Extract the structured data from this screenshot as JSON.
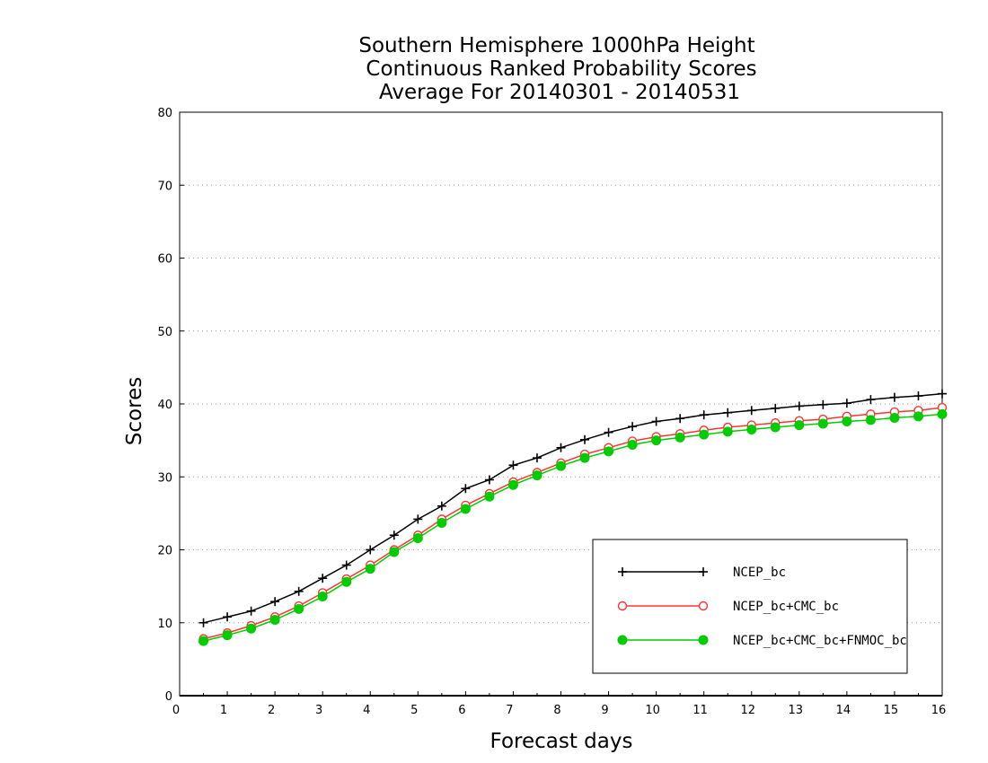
{
  "chart_data": {
    "type": "line",
    "title_lines": [
      "Southern Hemisphere 1000hPa Height",
      "Continuous Ranked Probability Scores",
      "Average For 20140301 - 20140531"
    ],
    "xlabel": "Forecast days",
    "ylabel": "Scores",
    "xlim": [
      0,
      16
    ],
    "ylim": [
      0,
      80
    ],
    "xticks": [
      0,
      1,
      2,
      3,
      4,
      5,
      6,
      7,
      8,
      9,
      10,
      11,
      12,
      13,
      14,
      15,
      16
    ],
    "yticks": [
      0,
      10,
      20,
      30,
      40,
      50,
      60,
      70,
      80
    ],
    "grid": "horizontal-dotted",
    "legend_position": "lower-right",
    "x": [
      0.5,
      1,
      1.5,
      2,
      2.5,
      3,
      3.5,
      4,
      4.5,
      5,
      5.5,
      6,
      6.5,
      7,
      7.5,
      8,
      8.5,
      9,
      9.5,
      10,
      10.5,
      11,
      11.5,
      12,
      12.5,
      13,
      13.5,
      14,
      14.5,
      15,
      15.5,
      16
    ],
    "series": [
      {
        "name": "NCEP_bc",
        "color": "#000000",
        "marker": "plus",
        "values": [
          10.0,
          10.8,
          11.6,
          12.9,
          14.3,
          16.1,
          17.9,
          20.0,
          22.0,
          24.2,
          26.0,
          28.4,
          29.6,
          31.6,
          32.6,
          34.0,
          35.1,
          36.1,
          36.9,
          37.6,
          38.0,
          38.5,
          38.8,
          39.1,
          39.4,
          39.7,
          39.9,
          40.1,
          40.6,
          40.9,
          41.1,
          41.4
        ]
      },
      {
        "name": "NCEP_bc+CMC_bc",
        "color": "#ff3333",
        "marker": "open-circle",
        "values": [
          7.8,
          8.6,
          9.6,
          10.8,
          12.3,
          14.1,
          16.0,
          17.9,
          20.0,
          22.0,
          24.2,
          26.1,
          27.7,
          29.3,
          30.6,
          31.9,
          33.1,
          34.0,
          34.9,
          35.5,
          35.9,
          36.4,
          36.8,
          37.1,
          37.4,
          37.7,
          37.9,
          38.3,
          38.6,
          38.9,
          39.1,
          39.5
        ]
      },
      {
        "name": "NCEP_bc+CMC_bc+FNMOC_bc",
        "color": "#00cc00",
        "marker": "filled-circle",
        "values": [
          7.5,
          8.3,
          9.2,
          10.4,
          11.9,
          13.6,
          15.6,
          17.4,
          19.7,
          21.6,
          23.7,
          25.6,
          27.3,
          28.9,
          30.2,
          31.5,
          32.6,
          33.5,
          34.4,
          35.0,
          35.4,
          35.8,
          36.2,
          36.5,
          36.8,
          37.1,
          37.3,
          37.6,
          37.8,
          38.1,
          38.3,
          38.6
        ]
      }
    ]
  }
}
